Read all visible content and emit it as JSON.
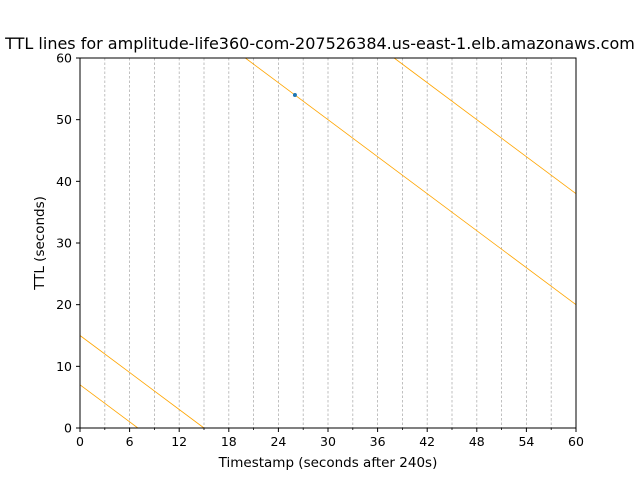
{
  "chart_data": {
    "type": "line",
    "title": "TTL lines for  amplitude-life360-com-207526384.us-east-1.elb.amazonaws.com",
    "xlabel": "Timestamp (seconds after 240s)",
    "ylabel": "TTL (seconds)",
    "xlim": [
      0,
      60
    ],
    "ylim": [
      0,
      60
    ],
    "x_ticks": [
      "0",
      "6",
      "12",
      "18",
      "24",
      "30",
      "36",
      "42",
      "48",
      "54",
      "60"
    ],
    "y_ticks": [
      "0",
      "10",
      "20",
      "30",
      "40",
      "50",
      "60"
    ],
    "x_minor_step": 3,
    "grid": "vertical dashed lines every 3 seconds",
    "line_color": "#ffa500",
    "point_color": "#1f77b4",
    "series": [
      {
        "x": [
          0,
          7
        ],
        "y": [
          7,
          0
        ]
      },
      {
        "x": [
          0,
          15
        ],
        "y": [
          15,
          0
        ]
      },
      {
        "x": [
          20,
          60
        ],
        "y": [
          60,
          20
        ]
      },
      {
        "x": [
          38,
          60
        ],
        "y": [
          60,
          38
        ]
      }
    ],
    "points": [
      {
        "x": 26,
        "y": 54
      }
    ]
  }
}
